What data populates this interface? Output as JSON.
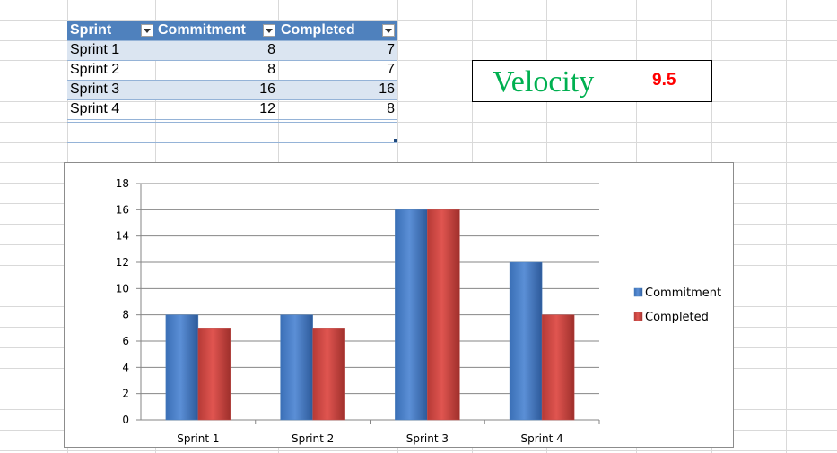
{
  "table": {
    "headers": [
      "Sprint",
      "Commitment",
      "Completed"
    ],
    "rows": [
      {
        "sprint": "Sprint 1",
        "commitment": "8",
        "completed": "7"
      },
      {
        "sprint": "Sprint 2",
        "commitment": "8",
        "completed": "7"
      },
      {
        "sprint": "Sprint 3",
        "commitment": "16",
        "completed": "16"
      },
      {
        "sprint": "Sprint 4",
        "commitment": "12",
        "completed": "8"
      }
    ]
  },
  "velocity": {
    "label": "Velocity",
    "value": "9.5"
  },
  "colors": {
    "header": "#4f81bd",
    "band": "#dbe5f1",
    "velocity_label": "#00b050",
    "velocity_value": "#ff0000",
    "series_commitment": "#4f81bd",
    "series_completed": "#c0504d"
  },
  "chart_data": {
    "type": "bar",
    "categories": [
      "Sprint 1",
      "Sprint 2",
      "Sprint 3",
      "Sprint 4"
    ],
    "series": [
      {
        "name": "Commitment",
        "values": [
          8,
          8,
          16,
          12
        ]
      },
      {
        "name": "Completed",
        "values": [
          7,
          7,
          16,
          8
        ]
      }
    ],
    "ylim": [
      0,
      18
    ],
    "yticks": [
      0,
      2,
      4,
      6,
      8,
      10,
      12,
      14,
      16,
      18
    ],
    "grid": true,
    "legend": "right",
    "title": "",
    "xlabel": "",
    "ylabel": ""
  }
}
